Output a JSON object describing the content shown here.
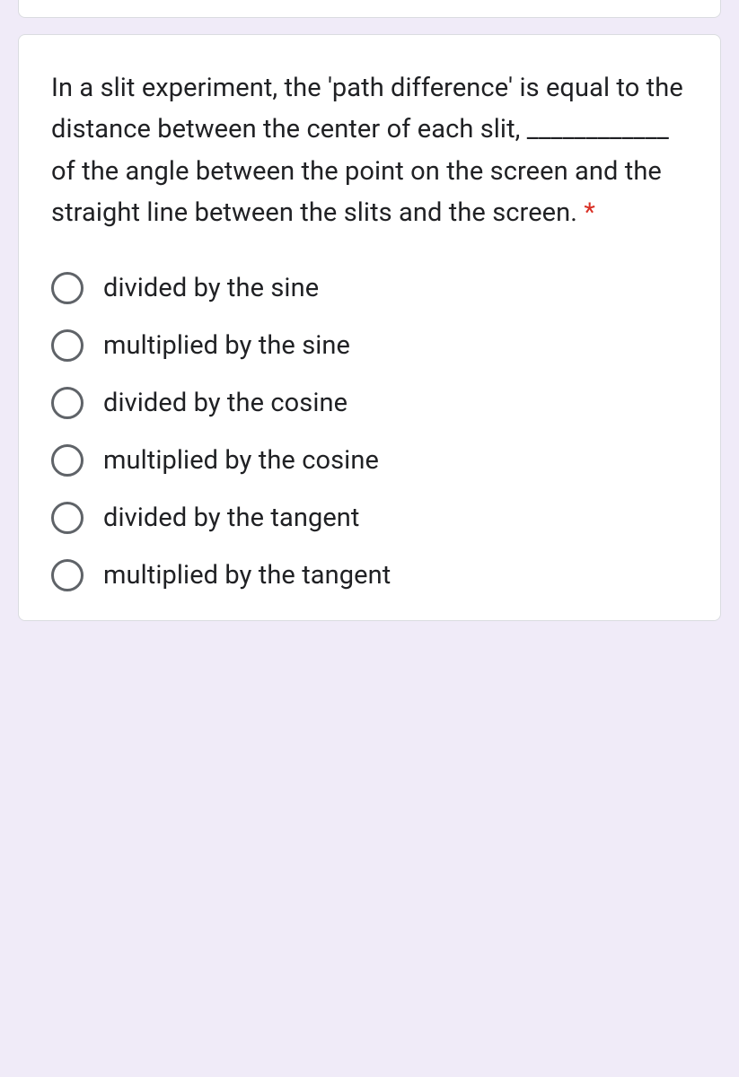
{
  "question": {
    "text": "In a slit experiment, the 'path difference' is equal to the distance between the center of each slit, ____________ of the angle between the point on the screen and the straight line between the slits and the screen.",
    "required": true
  },
  "options": [
    {
      "label": "divided by the sine"
    },
    {
      "label": "multiplied by the sine"
    },
    {
      "label": "divided by the cosine"
    },
    {
      "label": "multiplied by the cosine"
    },
    {
      "label": "divided by the tangent"
    },
    {
      "label": "multiplied by the tangent"
    }
  ],
  "colors": {
    "page_background": "#f0ebf8",
    "card_background": "#ffffff",
    "card_border": "#dadce0",
    "text_primary": "#202124",
    "radio_border": "#5f6368",
    "required_asterisk": "#d93025"
  }
}
